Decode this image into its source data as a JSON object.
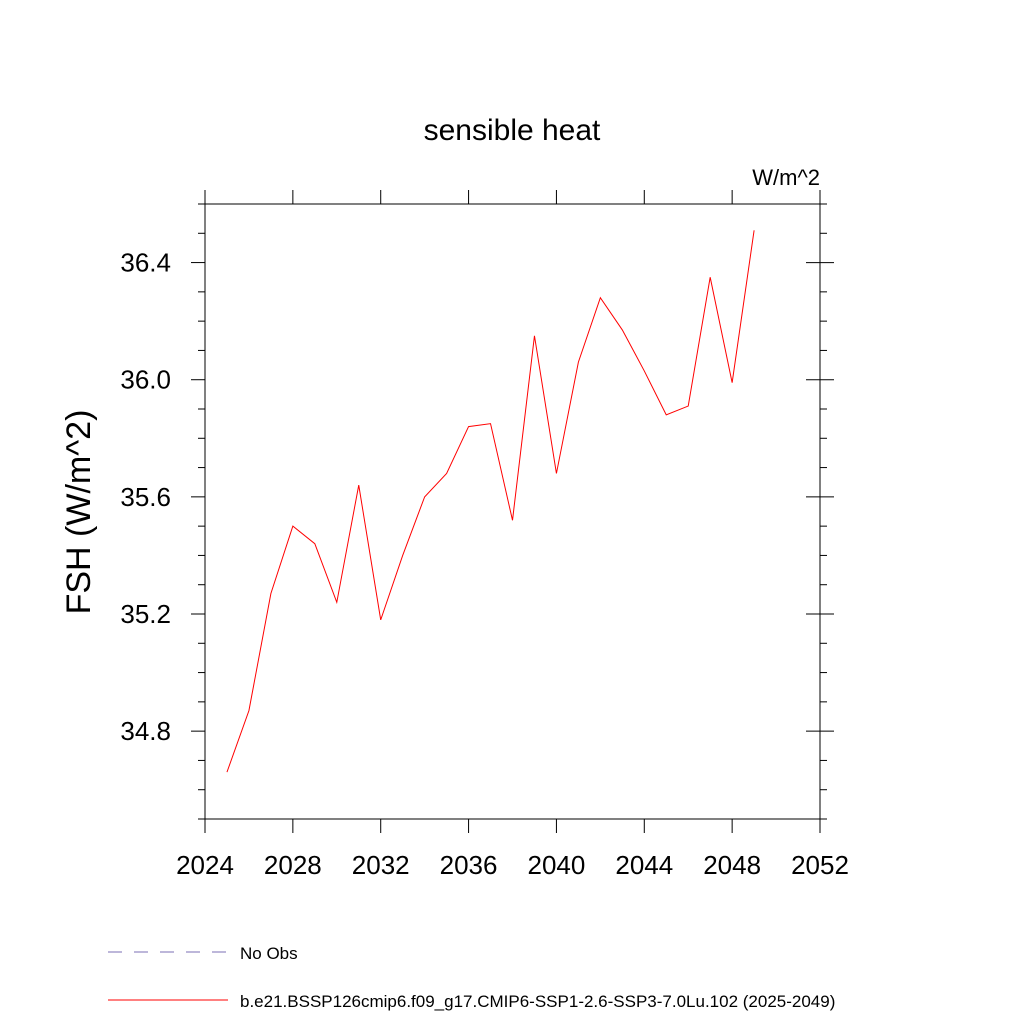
{
  "chart_data": {
    "type": "line",
    "title": "sensible heat",
    "units": "W/m^2",
    "y_label": "FSH  (W/m^2)",
    "x": [
      2025,
      2026,
      2027,
      2028,
      2029,
      2030,
      2031,
      2032,
      2033,
      2034,
      2035,
      2036,
      2037,
      2038,
      2039,
      2040,
      2041,
      2042,
      2043,
      2044,
      2045,
      2046,
      2047,
      2048,
      2049
    ],
    "series": [
      {
        "name": "b.e21.BSSP126cmip6.f09_g17.CMIP6-SSP1-2.6-SSP3-7.0Lu.102 (2025-2049)",
        "color": "#ff0000",
        "values": [
          34.66,
          34.87,
          35.27,
          35.5,
          35.44,
          35.24,
          35.64,
          35.18,
          35.4,
          35.6,
          35.68,
          35.84,
          35.85,
          35.52,
          36.15,
          35.68,
          36.06,
          36.28,
          36.17,
          36.03,
          35.88,
          35.91,
          36.35,
          35.99,
          36.51
        ]
      }
    ],
    "legend_extra": [
      {
        "name": "No Obs",
        "color": "#7b6fb5",
        "dashed": true
      }
    ],
    "xlim": [
      2024,
      2052
    ],
    "xticks": [
      2024,
      2028,
      2032,
      2036,
      2040,
      2044,
      2048,
      2052
    ],
    "ylim": [
      34.5,
      36.6
    ],
    "yticks": [
      {
        "value": 34.8,
        "label": "34.8"
      },
      {
        "value": 35.2,
        "label": "35.2"
      },
      {
        "value": 35.6,
        "label": "35.6"
      },
      {
        "value": 36.0,
        "label": "36.0"
      },
      {
        "value": 36.4,
        "label": "36.4"
      }
    ],
    "yminorticks": [
      34.5,
      34.6,
      34.7,
      34.9,
      35.0,
      35.1,
      35.3,
      35.4,
      35.5,
      35.7,
      35.8,
      35.9,
      36.1,
      36.2,
      36.3,
      36.5,
      36.6
    ]
  }
}
